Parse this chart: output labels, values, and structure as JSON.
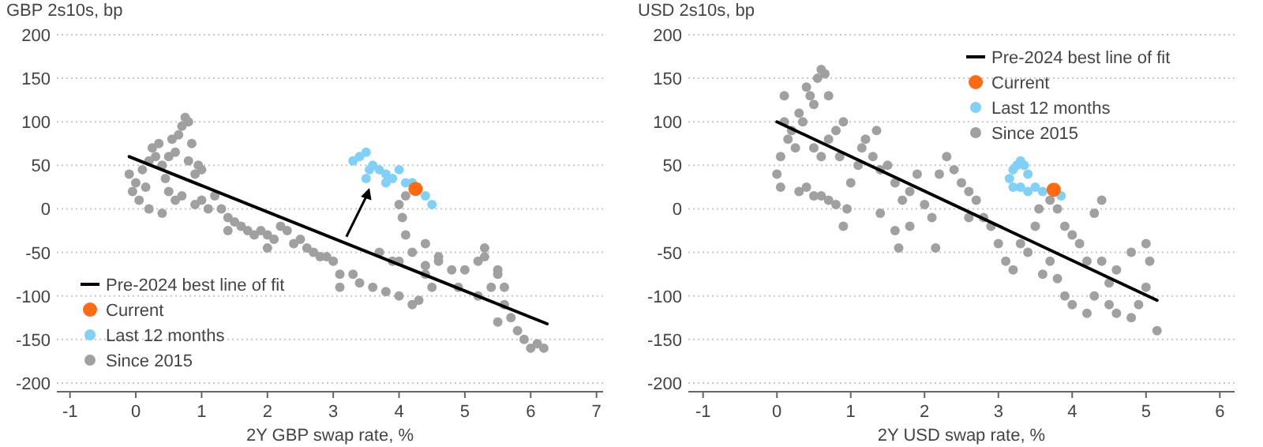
{
  "chart_data": [
    {
      "type": "scatter",
      "ylabel": "GBP 2s10s, bp",
      "xlabel": "2Y GBP swap rate, %",
      "xlim": [
        -1.2,
        7.1
      ],
      "ylim": [
        -210,
        200
      ],
      "xticks": [
        -1,
        0,
        1,
        2,
        3,
        4,
        5,
        6,
        7
      ],
      "yticks": [
        -200,
        -150,
        -100,
        -50,
        0,
        50,
        100,
        150,
        200
      ],
      "grid": "y",
      "legend": "bottom left",
      "series": [
        {
          "name": "Pre-2024 best line of fit",
          "type": "line",
          "color": "#000000",
          "x": [
            -0.1,
            6.25
          ],
          "values": [
            60,
            -132
          ]
        },
        {
          "name": "Current",
          "color": "#ff6a13",
          "marker": "circle",
          "x": [
            4.25
          ],
          "values": [
            23
          ]
        },
        {
          "name": "Last 12 months",
          "color": "#80d0f8",
          "marker": "circle",
          "x": [
            3.3,
            3.4,
            3.5,
            3.55,
            3.6,
            3.7,
            3.8,
            3.9,
            4.0,
            4.1,
            4.2,
            4.4,
            4.5,
            3.5,
            3.8
          ],
          "values": [
            55,
            60,
            65,
            45,
            50,
            45,
            40,
            35,
            45,
            30,
            30,
            15,
            5,
            35,
            30
          ]
        },
        {
          "name": "Since 2015",
          "color": "#a0a0a0",
          "marker": "circle",
          "x": [
            -0.1,
            -0.05,
            0,
            0.05,
            0.1,
            0.15,
            0.2,
            0.25,
            0.3,
            0.35,
            0.4,
            0.45,
            0.5,
            0.55,
            0.6,
            0.65,
            0.7,
            0.75,
            0.8,
            0.85,
            0.8,
            0.9,
            0.95,
            1.0,
            0.5,
            0.6,
            0.7,
            0.2,
            0.4,
            0.9,
            1.0,
            1.1,
            1.2,
            1.3,
            1.4,
            1.5,
            1.6,
            1.7,
            1.8,
            1.9,
            2.0,
            2.1,
            2.2,
            2.3,
            2.4,
            2.5,
            2.6,
            2.7,
            2.8,
            2.9,
            3.0,
            3.1,
            1.4,
            2.0,
            3.4,
            3.6,
            3.8,
            4.0,
            4.2,
            4.3,
            4.4,
            4.6,
            4.8,
            5.0,
            5.2,
            5.3,
            5.5,
            5.4,
            5.6,
            5.7,
            5.8,
            5.9,
            6.0,
            6.1,
            6.2,
            5.5,
            5.2,
            4.9,
            4.5,
            4.1,
            4.05,
            4.0,
            4.1,
            4.0,
            4.2,
            3.9,
            3.7,
            4.4,
            4.6,
            5.3,
            5.5,
            3.1,
            3.3,
            4.4,
            5.6
          ],
          "values": [
            40,
            20,
            30,
            10,
            45,
            25,
            55,
            70,
            60,
            75,
            50,
            35,
            60,
            80,
            65,
            85,
            95,
            105,
            100,
            75,
            55,
            40,
            50,
            45,
            20,
            10,
            15,
            0,
            -5,
            5,
            10,
            0,
            15,
            0,
            -10,
            -15,
            -20,
            -25,
            -30,
            -25,
            -30,
            -35,
            -20,
            -25,
            -40,
            -35,
            -45,
            -50,
            -55,
            -55,
            -60,
            -75,
            -25,
            -45,
            -85,
            -90,
            -95,
            -100,
            -110,
            -105,
            -75,
            -60,
            -70,
            -70,
            -60,
            -55,
            -70,
            -90,
            -110,
            -125,
            -140,
            -150,
            -160,
            -155,
            -160,
            -130,
            -100,
            -90,
            -90,
            -30,
            -10,
            5,
            15,
            -60,
            -50,
            -60,
            -50,
            -40,
            -55,
            -45,
            -75,
            -90,
            -75,
            -65,
            -90
          ]
        }
      ]
    },
    {
      "type": "scatter",
      "ylabel": "USD 2s10s, bp",
      "xlabel": "2Y USD swap rate, %",
      "xlim": [
        -1.2,
        6.2
      ],
      "ylim": [
        -210,
        200
      ],
      "xticks": [
        -1,
        0,
        1,
        2,
        3,
        4,
        5,
        6
      ],
      "yticks": [
        -200,
        -150,
        -100,
        -50,
        0,
        50,
        100,
        150,
        200
      ],
      "grid": "y",
      "legend": "top right",
      "series": [
        {
          "name": "Pre-2024 best line of fit",
          "type": "line",
          "color": "#000000",
          "x": [
            0,
            5.15
          ],
          "values": [
            100,
            -105
          ]
        },
        {
          "name": "Current",
          "color": "#ff6a13",
          "marker": "circle",
          "x": [
            3.75
          ],
          "values": [
            22
          ]
        },
        {
          "name": "Last 12 months",
          "color": "#80d0f8",
          "marker": "circle",
          "x": [
            3.15,
            3.2,
            3.25,
            3.3,
            3.35,
            3.4,
            3.3,
            3.4,
            3.5,
            3.6,
            3.85,
            3.2
          ],
          "values": [
            35,
            45,
            50,
            55,
            50,
            40,
            25,
            20,
            25,
            20,
            15,
            25
          ]
        },
        {
          "name": "Since 2015",
          "color": "#a0a0a0",
          "marker": "circle",
          "x": [
            0,
            0.05,
            0.1,
            0.1,
            0.15,
            0.05,
            0.2,
            0.25,
            0.3,
            0.35,
            0.4,
            0.45,
            0.5,
            0.55,
            0.6,
            0.65,
            0.7,
            0.5,
            0.6,
            0.7,
            0.8,
            0.85,
            0.9,
            0.3,
            0.4,
            0.5,
            0.6,
            0.7,
            0.8,
            0.9,
            0.95,
            1.0,
            1.1,
            1.15,
            1.2,
            1.3,
            1.35,
            1.4,
            1.5,
            1.6,
            1.7,
            1.65,
            1.6,
            1.8,
            1.9,
            2.0,
            2.1,
            2.15,
            2.2,
            2.3,
            2.4,
            2.5,
            2.6,
            2.7,
            2.8,
            2.9,
            3.0,
            3.1,
            3.2,
            3.3,
            3.4,
            3.5,
            3.55,
            3.7,
            3.8,
            3.9,
            4.0,
            3.7,
            3.8,
            3.9,
            4.0,
            4.2,
            4.3,
            4.5,
            4.6,
            4.8,
            4.9,
            5.0,
            5.05,
            5.0,
            4.8,
            4.6,
            4.4,
            4.2,
            4.1,
            4.3,
            4.4,
            1.4,
            1.8,
            2.6,
            5.15,
            4.5,
            3.6
          ],
          "values": [
            40,
            60,
            130,
            100,
            80,
            25,
            90,
            70,
            110,
            100,
            140,
            130,
            120,
            150,
            160,
            155,
            130,
            70,
            60,
            80,
            90,
            60,
            100,
            20,
            25,
            15,
            15,
            10,
            5,
            -20,
            0,
            30,
            50,
            70,
            80,
            60,
            90,
            45,
            50,
            30,
            10,
            -45,
            -25,
            20,
            40,
            5,
            -10,
            -45,
            40,
            60,
            45,
            30,
            20,
            10,
            -10,
            -20,
            -40,
            -60,
            -70,
            -40,
            -50,
            -20,
            0,
            10,
            0,
            -20,
            -30,
            -60,
            -80,
            -100,
            -110,
            -120,
            -100,
            -110,
            -120,
            -125,
            -110,
            -90,
            -60,
            -40,
            -50,
            -70,
            -60,
            -60,
            -40,
            -5,
            10,
            -5,
            -20,
            -10,
            -140,
            -85,
            -75
          ]
        }
      ]
    }
  ]
}
